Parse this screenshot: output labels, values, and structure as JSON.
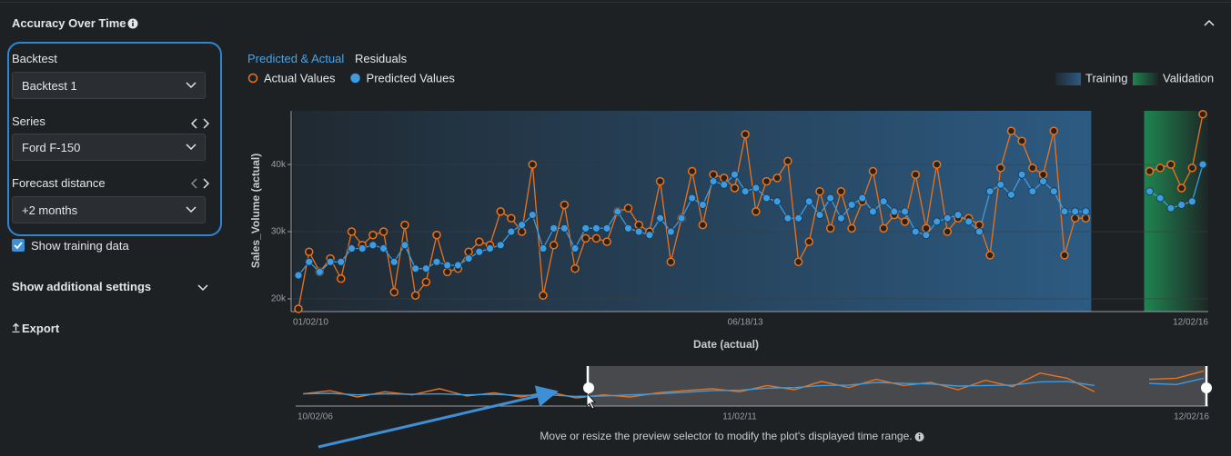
{
  "header": {
    "title": "Accuracy Over Time"
  },
  "controls": {
    "backtest_label": "Backtest",
    "backtest_value": "Backtest 1",
    "series_label": "Series",
    "series_value": "Ford F-150",
    "forecast_label": "Forecast distance",
    "forecast_value": "+2 months",
    "show_training": "Show training data",
    "additional_settings": "Show additional settings",
    "export": "Export"
  },
  "tabs": [
    "Predicted & Actual",
    "Residuals"
  ],
  "chart_data": [
    {
      "type": "line",
      "x_label": "Date (actual)",
      "y_label": "Sales_Volume (actual)",
      "categories": [
        "01/02/10",
        null,
        null,
        null,
        null,
        null,
        null,
        null,
        null,
        null,
        null,
        null,
        null,
        null,
        null,
        null,
        null,
        null,
        null,
        null,
        null,
        null,
        null,
        null,
        null,
        null,
        null,
        null,
        null,
        null,
        null,
        null,
        null,
        null,
        null,
        null,
        null,
        null,
        null,
        null,
        null,
        null,
        "06/18/13",
        null,
        null,
        null,
        null,
        null,
        null,
        null,
        null,
        null,
        null,
        null,
        null,
        null,
        null,
        null,
        null,
        null,
        null,
        null,
        null,
        null,
        null,
        null,
        null,
        null,
        null,
        null,
        null,
        null,
        null,
        null,
        null,
        null,
        null,
        null,
        null,
        null,
        null,
        null,
        null,
        null,
        null,
        "12/02/16"
      ],
      "series": [
        {
          "name": "Actual Values",
          "color": "#e8731f",
          "marker": "ring",
          "values": [
            18500,
            27000,
            24000,
            26000,
            23000,
            30000,
            28000,
            29500,
            30000,
            21000,
            31000,
            20500,
            22500,
            29500,
            24000,
            24500,
            27000,
            28500,
            28000,
            33000,
            32000,
            30000,
            40000,
            20500,
            28000,
            34000,
            24500,
            29000,
            29000,
            28500,
            33000,
            33500,
            31000,
            30000,
            37500,
            25500,
            32000,
            39000,
            31000,
            38500,
            38000,
            36500,
            44500,
            33000,
            37500,
            38000,
            40500,
            25500,
            28500,
            36000,
            30500,
            36000,
            30500,
            34500,
            39000,
            30500,
            32500,
            31500,
            38500,
            30500,
            40000,
            30000,
            32000,
            32000,
            31000,
            26500,
            39500,
            45000,
            43500,
            39500,
            38500,
            45000,
            26500,
            32000,
            32000,
            null,
            null,
            null,
            null,
            null,
            39000,
            39500,
            40000,
            36500,
            39500,
            47500
          ]
        },
        {
          "name": "Predicted Values",
          "color": "#3d9be0",
          "marker": "dot",
          "values": [
            23500,
            25500,
            24000,
            25500,
            25500,
            27500,
            27500,
            28000,
            27500,
            25500,
            28000,
            24500,
            24500,
            25500,
            25000,
            25000,
            26000,
            27000,
            27500,
            28000,
            30000,
            31000,
            32500,
            27500,
            30500,
            30500,
            27500,
            30500,
            30500,
            30500,
            33000,
            30500,
            30000,
            29500,
            32000,
            30000,
            32000,
            35000,
            34000,
            37500,
            37000,
            38500,
            36000,
            36500,
            35000,
            34500,
            32000,
            32000,
            34500,
            32500,
            35000,
            32000,
            34000,
            35000,
            33000,
            34500,
            33000,
            33000,
            30000,
            29500,
            31500,
            32000,
            32500,
            31500,
            30000,
            36000,
            37000,
            35500,
            38500,
            36000,
            37500,
            36000,
            33000,
            33000,
            33000,
            null,
            null,
            null,
            null,
            null,
            36000,
            35000,
            33500,
            34000,
            34500,
            40000
          ]
        }
      ],
      "bands": [
        {
          "name": "Training",
          "color": "#2f6593"
        },
        {
          "name": "Validation",
          "color": "#1f8a52"
        }
      ],
      "ylim": [
        18100,
        48000
      ],
      "yticks": [
        {
          "value": 20000,
          "label": "20k"
        },
        {
          "value": 30000,
          "label": "30k"
        },
        {
          "value": 40000,
          "label": "40k"
        }
      ],
      "grid": true
    },
    {
      "type": "line",
      "categories": [
        "10/02/06",
        null,
        null,
        null,
        null,
        null,
        null,
        null,
        null,
        null,
        null,
        null,
        null,
        null,
        null,
        null,
        "11/02/11",
        null,
        null,
        null,
        null,
        null,
        null,
        null,
        null,
        null,
        null,
        null,
        null,
        null,
        null,
        null,
        null,
        "12/02/16"
      ],
      "series": [
        {
          "color": "#e8731f",
          "values": [
            25000,
            28000,
            22000,
            27000,
            24000,
            30000,
            23000,
            26000,
            22000,
            27000,
            21000,
            24000,
            22000,
            26000,
            28000,
            30000,
            27000,
            33000,
            29000,
            37000,
            31000,
            39000,
            33000,
            36000,
            29000,
            38000,
            32000,
            45000,
            40000,
            27000,
            null,
            39000,
            40000,
            47000
          ]
        },
        {
          "color": "#3d9be0",
          "values": [
            25000,
            25500,
            24000,
            25000,
            24500,
            25000,
            24000,
            24500,
            23500,
            24000,
            22500,
            23000,
            24000,
            25000,
            26500,
            28000,
            28500,
            30500,
            31000,
            33000,
            33500,
            36000,
            35000,
            34500,
            32500,
            33000,
            33500,
            36500,
            37000,
            33000,
            null,
            35000,
            34000,
            40000
          ]
        }
      ],
      "ylim": [
        15000,
        50000
      ]
    }
  ],
  "footer": "Move or resize the preview selector to modify the plot's displayed time range."
}
